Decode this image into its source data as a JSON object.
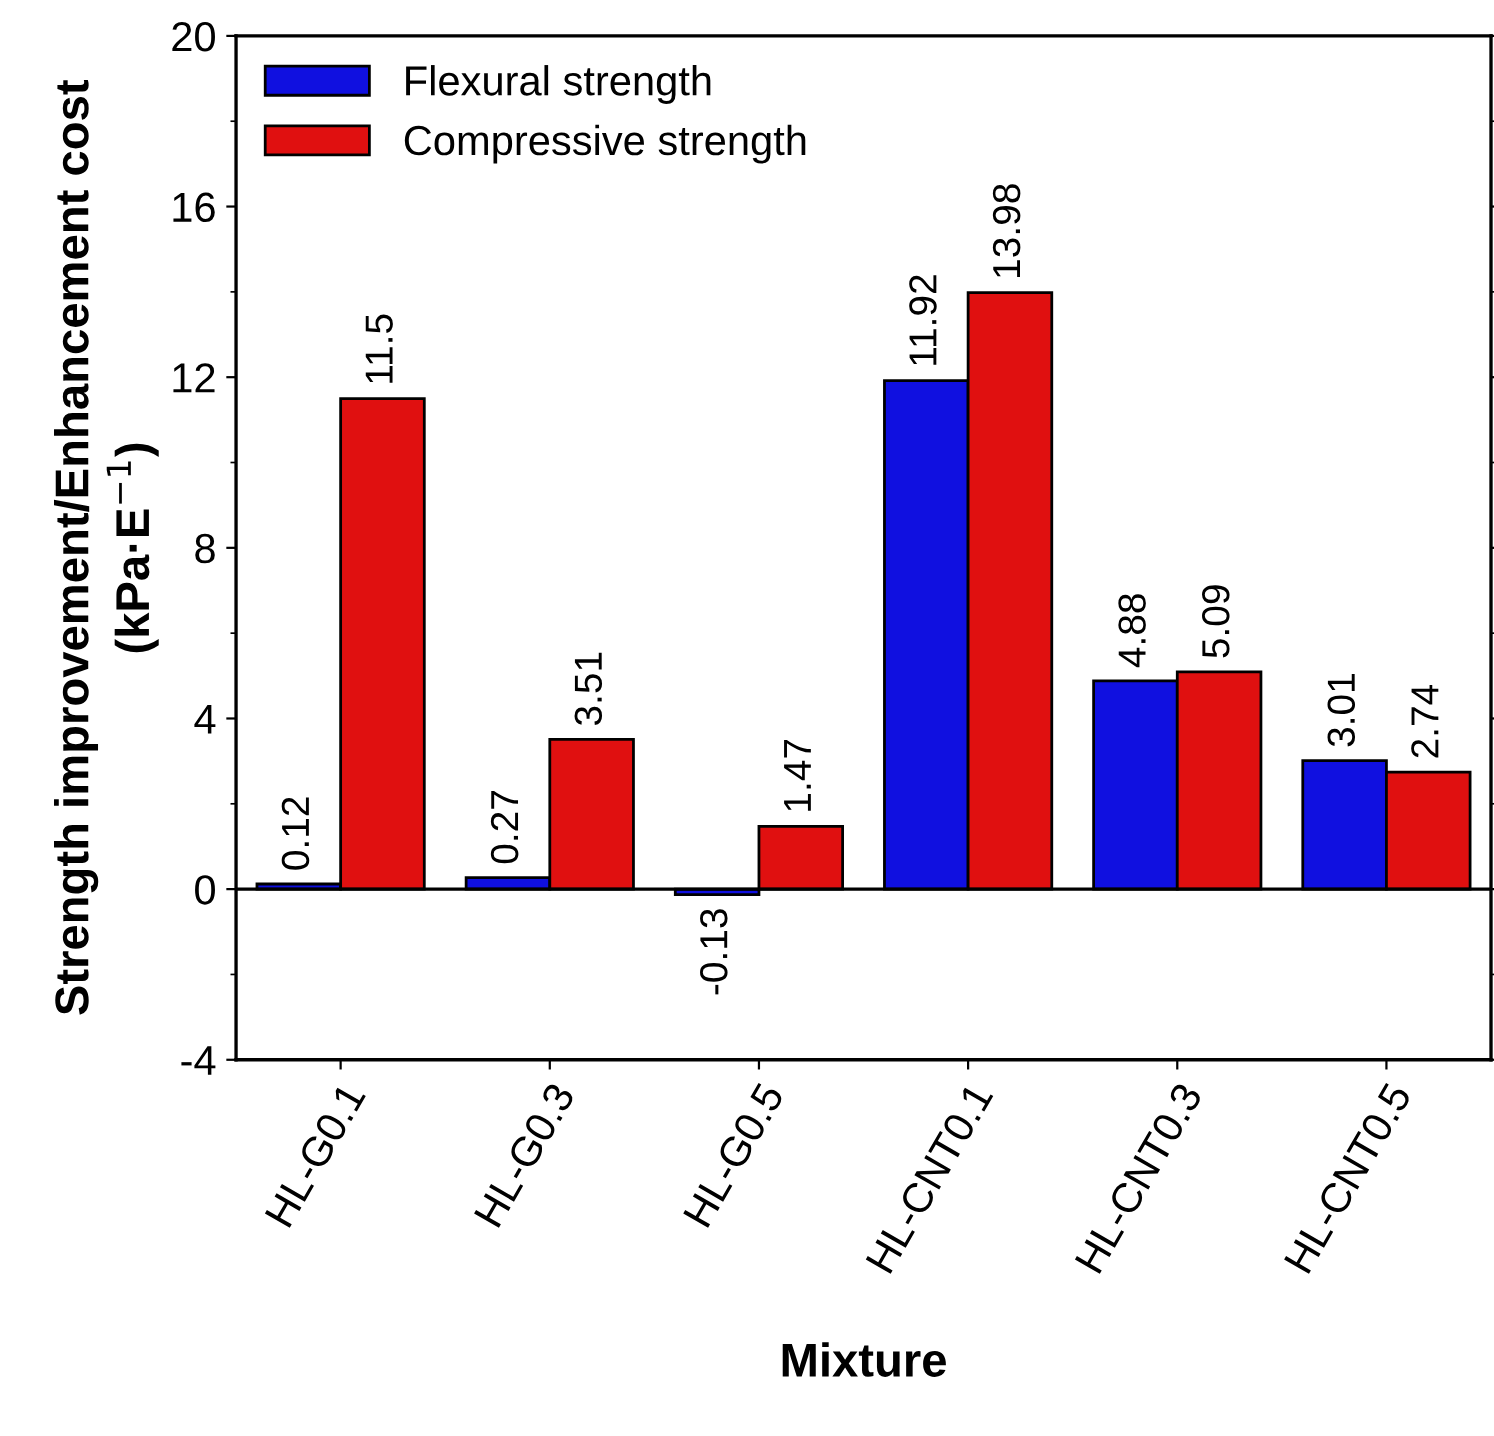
{
  "chart_data": {
    "type": "bar",
    "xlabel": "Mixture",
    "ylabel": "Strength improvement/Enhancement cost\n(kPa·E$^{−1}$)",
    "categories": [
      "HL-G0.1",
      "HL-G0.3",
      "HL-G0.5",
      "HL-CNT0.1",
      "HL-CNT0.3",
      "HL-CNT0.5"
    ],
    "series": [
      {
        "name": "Flexural strength",
        "color": "#1010e0",
        "values": [
          0.12,
          0.27,
          -0.13,
          11.92,
          4.88,
          3.01
        ]
      },
      {
        "name": "Compressive strength",
        "color": "#e01010",
        "values": [
          11.5,
          3.51,
          1.47,
          13.98,
          5.09,
          2.74
        ]
      }
    ],
    "ylim": [
      -4,
      20
    ],
    "yticks": [
      -4,
      0,
      4,
      8,
      12,
      16,
      20
    ],
    "ref_lines": [
      {
        "axis": "y",
        "value": 0
      }
    ],
    "data_labels": true,
    "legend": "top left",
    "grid": false
  }
}
